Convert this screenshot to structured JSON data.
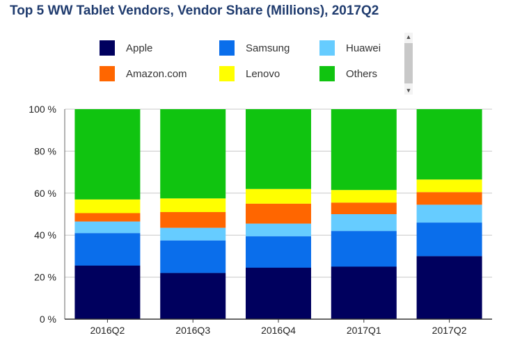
{
  "chart_data": {
    "type": "bar",
    "stacked": true,
    "title": "Top 5 WW Tablet Vendors, Vendor Share (Millions), 2017Q2",
    "categories": [
      "2016Q2",
      "2016Q3",
      "2016Q4",
      "2017Q1",
      "2017Q2"
    ],
    "series": [
      {
        "name": "Apple",
        "color": "#00005e",
        "values": [
          25.5,
          22,
          24.5,
          25,
          30
        ]
      },
      {
        "name": "Samsung",
        "color": "#0a6eeb",
        "values": [
          15.5,
          15.5,
          15,
          17,
          16
        ]
      },
      {
        "name": "Huawei",
        "color": "#66ccff",
        "values": [
          5.5,
          6,
          6,
          8,
          8.5
        ]
      },
      {
        "name": "Amazon.com",
        "color": "#ff6600",
        "values": [
          4,
          7.5,
          9.5,
          5.5,
          6
        ]
      },
      {
        "name": "Lenovo",
        "color": "#ffff00",
        "values": [
          6.5,
          6.5,
          7,
          6,
          6
        ]
      },
      {
        "name": "Others",
        "color": "#10c410",
        "values": [
          43,
          42.5,
          38,
          38.5,
          33.5
        ]
      }
    ],
    "yticks": [
      "0 %",
      "20 %",
      "40 %",
      "60 %",
      "80 %",
      "100 %"
    ],
    "ylim": [
      0,
      100
    ],
    "xlabel": "",
    "ylabel": "",
    "grid": true,
    "legend_position": "top"
  },
  "legend_scroll": {
    "up_icon": "chevron-up-icon",
    "down_icon": "chevron-down-icon"
  }
}
